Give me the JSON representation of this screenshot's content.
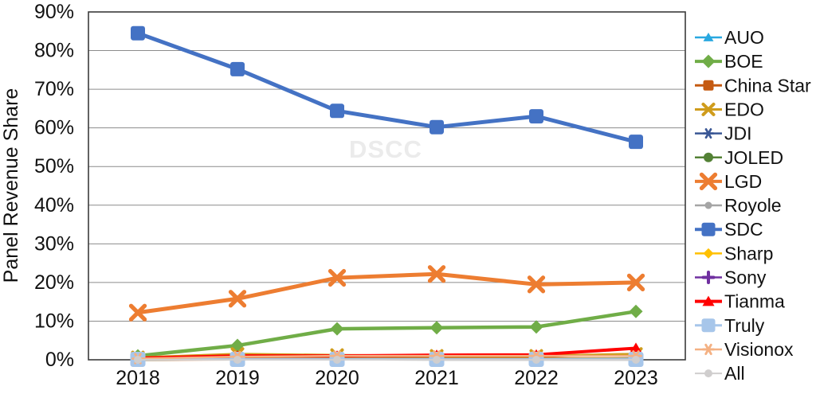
{
  "watermark": "DSCC",
  "chart_data": {
    "type": "line",
    "title": "",
    "xlabel": "",
    "ylabel": "Panel Revenue Share",
    "ylim": [
      0,
      90
    ],
    "y_tick_step": 10,
    "y_tick_labels": [
      "0%",
      "10%",
      "20%",
      "30%",
      "40%",
      "50%",
      "60%",
      "70%",
      "80%",
      "90%"
    ],
    "grid": true,
    "legend_position": "right",
    "categories": [
      "2018",
      "2019",
      "2020",
      "2021",
      "2022",
      "2023"
    ],
    "series": [
      {
        "name": "AUO",
        "color": "#29a8e0",
        "marker": "triangle",
        "line_width": 2.5,
        "marker_size": 6,
        "values": [
          0.2,
          0.2,
          0.3,
          0.3,
          0.3,
          0.4
        ]
      },
      {
        "name": "BOE",
        "color": "#70ad47",
        "marker": "diamond",
        "line_width": 4.5,
        "marker_size": 8.5,
        "values": [
          1.0,
          3.7,
          8.0,
          8.3,
          8.5,
          12.5
        ]
      },
      {
        "name": "China Star",
        "color": "#c55a11",
        "marker": "square",
        "line_width": 3,
        "marker_size": 6.5,
        "values": [
          0.0,
          0.1,
          0.3,
          0.5,
          0.8,
          1.5
        ]
      },
      {
        "name": "EDO",
        "color": "#cf9c1c",
        "marker": "x",
        "line_width": 3,
        "marker_size": 6.5,
        "values": [
          0.6,
          1.5,
          1.2,
          1.0,
          1.0,
          1.5
        ]
      },
      {
        "name": "JDI",
        "color": "#3a5795",
        "marker": "asterisk",
        "line_width": 2.5,
        "marker_size": 6,
        "values": [
          0.3,
          0.3,
          0.3,
          0.3,
          0.2,
          0.2
        ]
      },
      {
        "name": "JOLED",
        "color": "#538135",
        "marker": "circle",
        "line_width": 2.5,
        "marker_size": 6,
        "values": [
          0.0,
          0.1,
          0.1,
          0.2,
          0.2,
          0.2
        ]
      },
      {
        "name": "LGD",
        "color": "#ed7d31",
        "marker": "x",
        "line_width": 5,
        "marker_size": 8.5,
        "values": [
          12.2,
          15.8,
          21.2,
          22.2,
          19.5,
          20.0
        ]
      },
      {
        "name": "Royole",
        "color": "#a5a5a5",
        "marker": "circle",
        "line_width": 2.5,
        "marker_size": 4.5,
        "values": [
          0.0,
          0.1,
          0.1,
          0.0,
          0.0,
          0.0
        ]
      },
      {
        "name": "SDC",
        "color": "#4472c4",
        "marker": "square",
        "line_width": 5,
        "marker_size": 9,
        "values": [
          84.5,
          75.2,
          64.4,
          60.2,
          63.0,
          56.4
        ]
      },
      {
        "name": "Sharp",
        "color": "#ffc000",
        "marker": "diamond",
        "line_width": 2.5,
        "marker_size": 6.5,
        "values": [
          0.4,
          0.3,
          0.3,
          0.3,
          0.3,
          0.3
        ]
      },
      {
        "name": "Sony",
        "color": "#7030a0",
        "marker": "plus",
        "line_width": 2.5,
        "marker_size": 6.5,
        "values": [
          0.2,
          0.2,
          0.2,
          0.2,
          0.2,
          0.2
        ]
      },
      {
        "name": "Tianma",
        "color": "#ff0000",
        "marker": "triangle",
        "line_width": 4,
        "marker_size": 7,
        "values": [
          0.4,
          1.0,
          1.0,
          1.2,
          1.3,
          3.0
        ]
      },
      {
        "name": "Truly",
        "color": "#a7c6ea",
        "marker": "square",
        "line_width": 3,
        "marker_size": 9.5,
        "values": [
          0.1,
          0.1,
          0.1,
          0.1,
          0.1,
          0.1
        ]
      },
      {
        "name": "Visionox",
        "color": "#f4b183",
        "marker": "asterisk",
        "line_width": 2.5,
        "marker_size": 6.5,
        "values": [
          0.3,
          0.8,
          1.0,
          1.0,
          1.0,
          1.0
        ]
      },
      {
        "name": "All",
        "color": "#d0cece",
        "marker": "circle",
        "line_width": 2,
        "marker_size": 5,
        "values": [
          0.0,
          0.0,
          0.0,
          0.0,
          0.0,
          0.0
        ]
      }
    ]
  }
}
